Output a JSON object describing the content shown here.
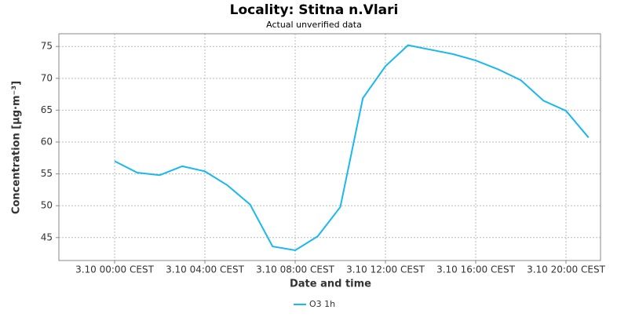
{
  "chart_data": {
    "type": "line",
    "title": "Locality: Stitna n.Vlari",
    "subtitle": "Actual unverified data",
    "x_label": "Date and time",
    "y_label": "Concentration [µg·m⁻³]",
    "x": [
      0,
      1,
      2,
      3,
      4,
      5,
      6,
      7,
      8,
      9,
      10,
      11,
      12,
      13,
      14,
      15,
      16,
      17,
      18,
      19,
      20,
      21
    ],
    "series": [
      {
        "name": "O3 1h",
        "color": "#1ab8ef",
        "values": [
          57.0,
          55.2,
          54.8,
          56.2,
          55.4,
          53.2,
          50.2,
          43.6,
          43.0,
          45.2,
          49.8,
          66.9,
          71.9,
          75.2,
          74.5,
          73.8,
          72.8,
          71.4,
          69.7,
          66.5,
          64.9,
          60.7
        ]
      }
    ],
    "xlim": [
      -2.47,
      21.53
    ],
    "xticks": [
      {
        "value": 0,
        "label": "3.10 00:00 CEST"
      },
      {
        "value": 4,
        "label": "3.10 04:00 CEST"
      },
      {
        "value": 8,
        "label": "3.10 08:00 CEST"
      },
      {
        "value": 12,
        "label": "3.10 12:00 CEST"
      },
      {
        "value": 16,
        "label": "3.10 16:00 CEST"
      },
      {
        "value": 20,
        "label": "3.10 20:00 CEST"
      }
    ],
    "ylim": [
      41.4,
      77.0
    ],
    "yticks": [
      45,
      50,
      55,
      60,
      65,
      70,
      75
    ],
    "grid": true,
    "legend": "bottom"
  }
}
